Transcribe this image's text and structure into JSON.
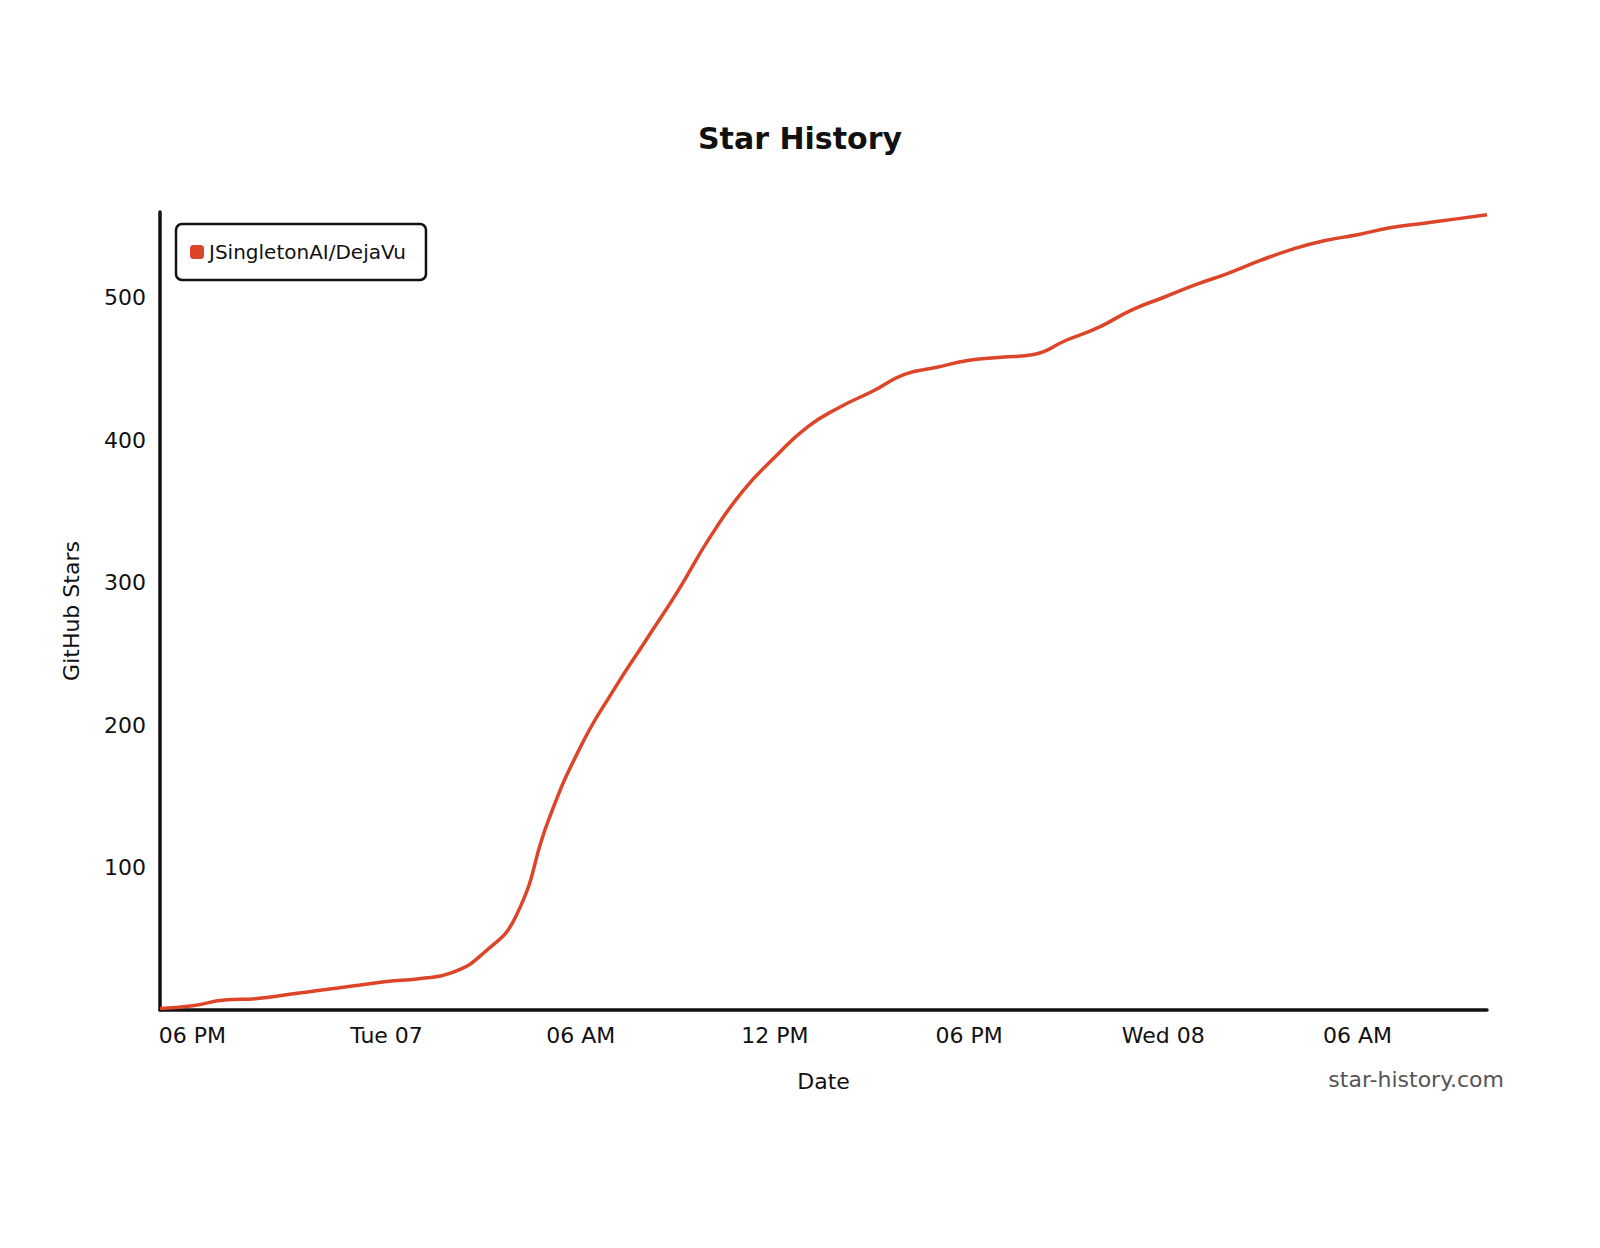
{
  "chart_data": {
    "type": "line",
    "title": "Star History",
    "x_label": "Date",
    "y_label": "GitHub Stars",
    "annotation": "star-history.com",
    "categories": [
      null,
      "06 PM",
      null,
      null,
      null,
      null,
      null,
      "Tue 07",
      null,
      null,
      null,
      null,
      null,
      "06 AM",
      null,
      null,
      null,
      null,
      null,
      "12 PM",
      null,
      null,
      null,
      null,
      null,
      "06 PM",
      null,
      null,
      null,
      null,
      null,
      "Wed 08",
      null,
      null,
      null,
      null,
      null,
      "06 AM",
      null,
      null,
      null,
      null
    ],
    "series": [
      {
        "name": "JSingletonAI/DejaVu",
        "color": "#dd4528",
        "values": [
          1,
          3,
          7,
          8,
          11,
          14,
          17,
          20,
          22,
          26,
          40,
          66,
          133,
          185,
          224,
          259,
          294,
          332,
          364,
          388,
          409,
          423,
          434,
          446,
          451,
          456,
          458,
          460,
          470,
          479,
          491,
          500,
          509,
          517,
          526,
          534,
          540,
          544,
          549,
          552,
          555,
          558
        ]
      }
    ],
    "ylim": [
      0,
      560
    ],
    "yticks": [
      100,
      200,
      300,
      400,
      500
    ],
    "grid": false,
    "legend": "upper left"
  }
}
